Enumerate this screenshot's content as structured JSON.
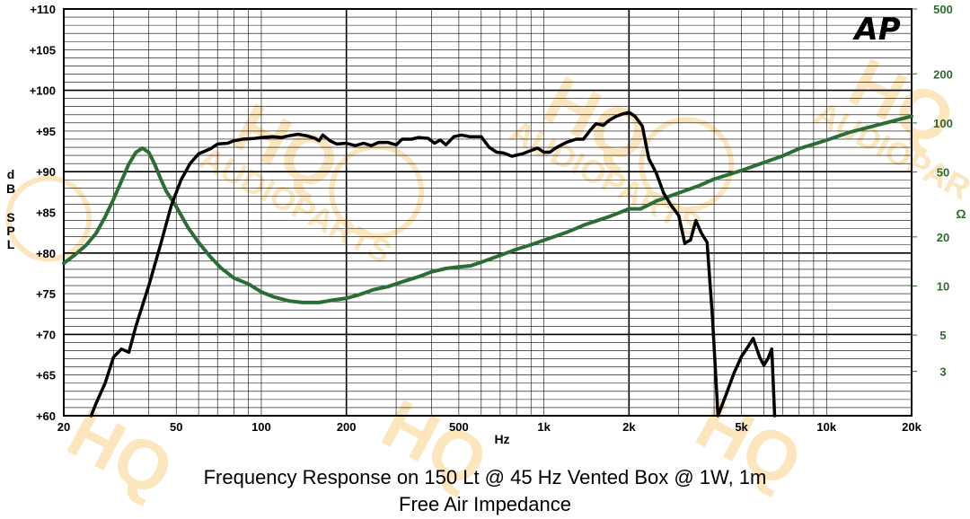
{
  "captions": {
    "line1": "Frequency Response on 150 Lt @ 45 Hz Vented Box @ 1W, 1m",
    "line2": "Free Air Impedance"
  },
  "watermark": {
    "brand": "HQ",
    "sub": "AUDIOPARTS"
  },
  "logo": {
    "text": "AP"
  },
  "chart_data": {
    "type": "line",
    "title": "Frequency Response on 150 Lt @ 45 Hz Vented Box @ 1W, 1m",
    "subtitle": "Free Air Impedance",
    "xlabel": "Hz",
    "ylabel_left": [
      "d",
      "B",
      "",
      "S",
      "P",
      "L"
    ],
    "ylabel_right": "Ω",
    "xscale": "log",
    "xlim": [
      20,
      20000
    ],
    "ylim_left": [
      60,
      110
    ],
    "ylim_right": [
      1.6,
      500
    ],
    "yscale_right": "log",
    "x_ticks": [
      {
        "v": 20,
        "label": "20"
      },
      {
        "v": 50,
        "label": "50"
      },
      {
        "v": 100,
        "label": "100"
      },
      {
        "v": 200,
        "label": "200"
      },
      {
        "v": 500,
        "label": "500"
      },
      {
        "v": 1000,
        "label": "1k"
      },
      {
        "v": 2000,
        "label": "2k"
      },
      {
        "v": 5000,
        "label": "5k"
      },
      {
        "v": 10000,
        "label": "10k"
      },
      {
        "v": 20000,
        "label": "20k"
      }
    ],
    "y_left_ticks": [
      {
        "v": 110,
        "label": "+110"
      },
      {
        "v": 105,
        "label": "+105"
      },
      {
        "v": 100,
        "label": "+100"
      },
      {
        "v": 95,
        "label": "+95"
      },
      {
        "v": 90,
        "label": "+90"
      },
      {
        "v": 85,
        "label": "+85"
      },
      {
        "v": 80,
        "label": "+80"
      },
      {
        "v": 75,
        "label": "+75"
      },
      {
        "v": 70,
        "label": "+70"
      },
      {
        "v": 65,
        "label": "+65"
      },
      {
        "v": 60,
        "label": "+60"
      }
    ],
    "y_right_ticks": [
      {
        "v": 500,
        "label": "500"
      },
      {
        "v": 200,
        "label": "200"
      },
      {
        "v": 100,
        "label": "100"
      },
      {
        "v": 50,
        "label": "50"
      },
      {
        "v": 20,
        "label": "20"
      },
      {
        "v": 10,
        "label": "10"
      },
      {
        "v": 5,
        "label": "5"
      },
      {
        "v": 3,
        "label": "3"
      }
    ],
    "grid": true,
    "colors": {
      "spl": "#000000",
      "impedance": "#2a6e36",
      "right_axis": "#2e6b2e",
      "grid": "#000000"
    },
    "series": [
      {
        "axis": "left",
        "points": [
          [
            25,
            60
          ],
          [
            26,
            61.5
          ],
          [
            28,
            64
          ],
          [
            30,
            67.2
          ],
          [
            32,
            68.2
          ],
          [
            34,
            67.8
          ],
          [
            36,
            71
          ],
          [
            40,
            76
          ],
          [
            44,
            81
          ],
          [
            48,
            85.8
          ],
          [
            52,
            89
          ],
          [
            56,
            91
          ],
          [
            60,
            92.2
          ],
          [
            66,
            92.8
          ],
          [
            70,
            93.4
          ],
          [
            76,
            93.5
          ],
          [
            80,
            93.8
          ],
          [
            86,
            94
          ],
          [
            95,
            94.1
          ],
          [
            100,
            94.2
          ],
          [
            110,
            94.3
          ],
          [
            118,
            94.2
          ],
          [
            125,
            94.4
          ],
          [
            135,
            94.6
          ],
          [
            145,
            94.4
          ],
          [
            155,
            94.1
          ],
          [
            160,
            93.8
          ],
          [
            165,
            94.5
          ],
          [
            175,
            93.8
          ],
          [
            185,
            93.4
          ],
          [
            200,
            93.5
          ],
          [
            215,
            93.2
          ],
          [
            230,
            93.5
          ],
          [
            245,
            93.2
          ],
          [
            260,
            93.6
          ],
          [
            280,
            93.6
          ],
          [
            300,
            93.3
          ],
          [
            315,
            94
          ],
          [
            340,
            94
          ],
          [
            360,
            94.2
          ],
          [
            390,
            94.1
          ],
          [
            410,
            93.5
          ],
          [
            430,
            93.9
          ],
          [
            450,
            93.3
          ],
          [
            480,
            94.3
          ],
          [
            510,
            94.5
          ],
          [
            545,
            94.3
          ],
          [
            600,
            94.3
          ],
          [
            640,
            93
          ],
          [
            680,
            92.4
          ],
          [
            720,
            92.3
          ],
          [
            770,
            91.9
          ],
          [
            840,
            92.2
          ],
          [
            900,
            92.6
          ],
          [
            950,
            92.9
          ],
          [
            1000,
            92.4
          ],
          [
            1050,
            92.4
          ],
          [
            1100,
            92.9
          ],
          [
            1200,
            93.6
          ],
          [
            1300,
            94
          ],
          [
            1380,
            94
          ],
          [
            1450,
            95
          ],
          [
            1530,
            95.9
          ],
          [
            1620,
            95.7
          ],
          [
            1700,
            96.3
          ],
          [
            1800,
            96.8
          ],
          [
            1900,
            97.1
          ],
          [
            2000,
            97.3
          ],
          [
            2100,
            96.8
          ],
          [
            2230,
            95.6
          ],
          [
            2350,
            91.6
          ],
          [
            2500,
            89.8
          ],
          [
            2650,
            87.4
          ],
          [
            2800,
            86
          ],
          [
            3000,
            84.6
          ],
          [
            3150,
            81.2
          ],
          [
            3300,
            81.6
          ],
          [
            3450,
            84
          ],
          [
            3600,
            82.5
          ],
          [
            3780,
            81.3
          ],
          [
            3950,
            72
          ],
          [
            4130,
            60
          ],
          [
            4400,
            62.5
          ],
          [
            4700,
            65.2
          ],
          [
            5000,
            67.3
          ],
          [
            5300,
            68.6
          ],
          [
            5500,
            69.5
          ],
          [
            5800,
            67.2
          ],
          [
            6000,
            66.2
          ],
          [
            6200,
            67
          ],
          [
            6400,
            68.2
          ],
          [
            6550,
            60
          ]
        ]
      },
      {
        "axis": "right",
        "points": [
          [
            20,
            13.8
          ],
          [
            22,
            15.6
          ],
          [
            24,
            17.8
          ],
          [
            26,
            21
          ],
          [
            28,
            26.5
          ],
          [
            30,
            34
          ],
          [
            32,
            44
          ],
          [
            34,
            56
          ],
          [
            36,
            66
          ],
          [
            38,
            70
          ],
          [
            40,
            66
          ],
          [
            42,
            55.5
          ],
          [
            44,
            45.6
          ],
          [
            46,
            38.4
          ],
          [
            50,
            30.7
          ],
          [
            55,
            22.9
          ],
          [
            60,
            18.5
          ],
          [
            66,
            15.1
          ],
          [
            72,
            12.9
          ],
          [
            80,
            11.2
          ],
          [
            90,
            10.3
          ],
          [
            100,
            9.2
          ],
          [
            110,
            8.6
          ],
          [
            125,
            8.1
          ],
          [
            140,
            7.92
          ],
          [
            160,
            7.92
          ],
          [
            180,
            8.2
          ],
          [
            200,
            8.4
          ],
          [
            220,
            8.8
          ],
          [
            250,
            9.5
          ],
          [
            280,
            9.9
          ],
          [
            320,
            10.7
          ],
          [
            360,
            11.4
          ],
          [
            400,
            12.2
          ],
          [
            450,
            12.8
          ],
          [
            500,
            13.1
          ],
          [
            550,
            13.3
          ],
          [
            600,
            14.0
          ],
          [
            700,
            15.4
          ],
          [
            800,
            16.8
          ],
          [
            900,
            17.9
          ],
          [
            1000,
            19.1
          ],
          [
            1200,
            21.3
          ],
          [
            1400,
            23.8
          ],
          [
            1700,
            26.6
          ],
          [
            2000,
            29.7
          ],
          [
            2200,
            29.7
          ],
          [
            2500,
            33.2
          ],
          [
            3000,
            37.2
          ],
          [
            3500,
            40.9
          ],
          [
            4000,
            45.2
          ],
          [
            5000,
            51.1
          ],
          [
            6000,
            57.2
          ],
          [
            7000,
            62.8
          ],
          [
            8000,
            69.6
          ],
          [
            10000,
            78.4
          ],
          [
            12000,
            87.4
          ],
          [
            15000,
            96.6
          ],
          [
            20000,
            110
          ]
        ]
      }
    ]
  }
}
